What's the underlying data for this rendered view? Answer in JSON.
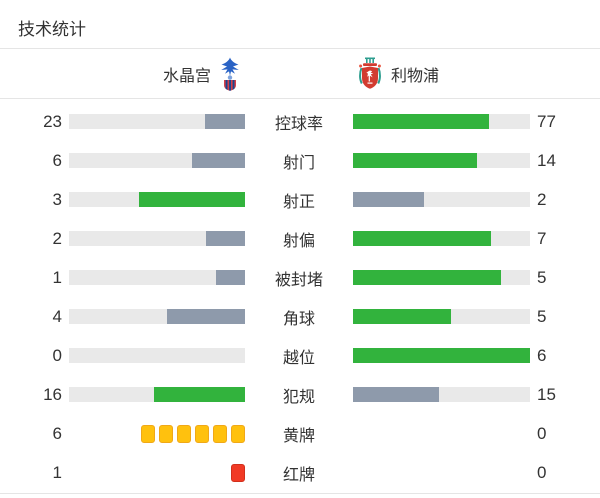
{
  "title": "技术统计",
  "header": {
    "home": {
      "name": "水晶宫"
    },
    "away": {
      "name": "利物浦"
    }
  },
  "colors": {
    "bar_green": "#32b33d",
    "bar_gray": "#8e9aab",
    "bar_track": "#e9e9e9",
    "yellow_card": "#ffc10e",
    "yellow_card_border": "#f0a818",
    "red_card": "#f13a25",
    "red_card_border": "#d1301c",
    "text": "#333333",
    "divider": "#e5e5e5"
  },
  "stats": [
    {
      "key": "possession",
      "label": "控球率",
      "home": 23,
      "away": 77,
      "type": "bar"
    },
    {
      "key": "shots",
      "label": "射门",
      "home": 6,
      "away": 14,
      "type": "bar"
    },
    {
      "key": "shots-on-target",
      "label": "射正",
      "home": 3,
      "away": 2,
      "type": "bar"
    },
    {
      "key": "shots-off-target",
      "label": "射偏",
      "home": 2,
      "away": 7,
      "type": "bar"
    },
    {
      "key": "shots-blocked",
      "label": "被封堵",
      "home": 1,
      "away": 5,
      "type": "bar"
    },
    {
      "key": "corners",
      "label": "角球",
      "home": 4,
      "away": 5,
      "type": "bar"
    },
    {
      "key": "offsides",
      "label": "越位",
      "home": 0,
      "away": 6,
      "type": "bar"
    },
    {
      "key": "fouls",
      "label": "犯规",
      "home": 16,
      "away": 15,
      "type": "bar"
    },
    {
      "key": "yellow-cards",
      "label": "黄牌",
      "home": 6,
      "away": 0,
      "type": "cards",
      "card": "yellow"
    },
    {
      "key": "red-cards",
      "label": "红牌",
      "home": 1,
      "away": 0,
      "type": "cards",
      "card": "red"
    }
  ],
  "chart_data": {
    "type": "bar",
    "title": "技术统计",
    "orientation": "horizontal-paired",
    "categories": [
      "控球率",
      "射门",
      "射正",
      "射偏",
      "被封堵",
      "角球",
      "越位",
      "犯规",
      "黄牌",
      "红牌"
    ],
    "series": [
      {
        "name": "水晶宫",
        "values": [
          23,
          6,
          3,
          2,
          1,
          4,
          0,
          16,
          6,
          1
        ]
      },
      {
        "name": "利物浦",
        "values": [
          77,
          14,
          2,
          7,
          5,
          5,
          6,
          15,
          0,
          0
        ]
      }
    ],
    "layout": "each row: bar length = value / (home+away); higher value colored green, lower gray; card rows drawn as card icons",
    "legend_position": "top",
    "grid": false
  }
}
